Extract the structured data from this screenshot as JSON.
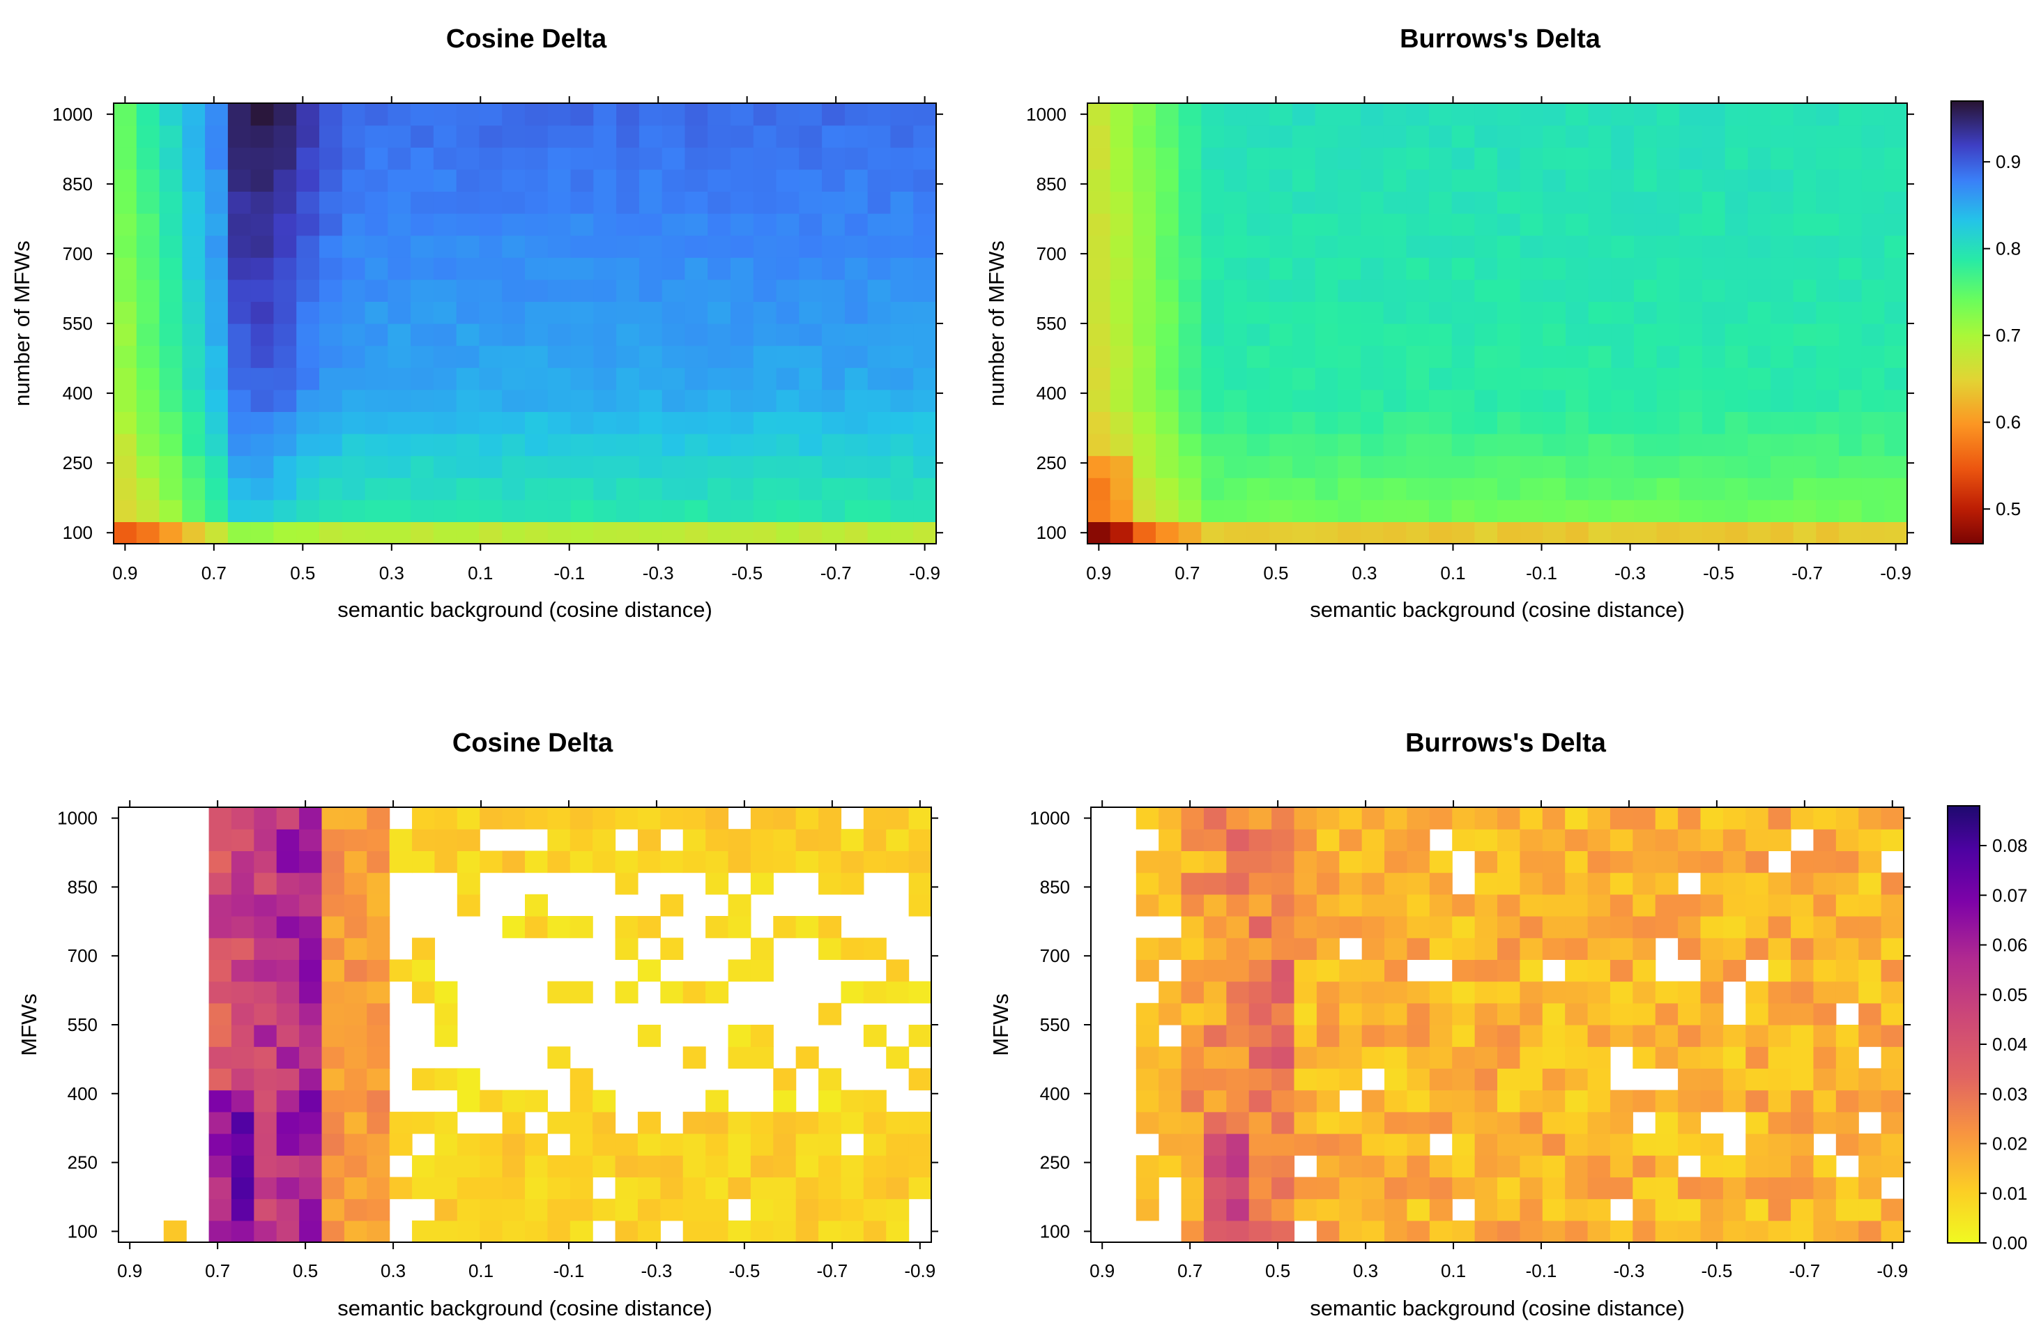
{
  "chart_data": [
    {
      "type": "heatmap",
      "title": "Cosine Delta",
      "xlabel": "semantic background (cosine distance)",
      "ylabel": "number of MFWs",
      "xlim": [
        0.9,
        -0.9
      ],
      "ylim": [
        100,
        1000
      ],
      "x_ticks": [
        "0.9",
        "0.7",
        "0.5",
        "0.3",
        "0.1",
        "-0.1",
        "-0.3",
        "-0.5",
        "-0.7",
        "-0.9"
      ],
      "y_ticks": [
        "100",
        "250",
        "400",
        "550",
        "700",
        "850",
        "1000"
      ],
      "colormap": "turbo",
      "color_range": [
        0.46,
        0.97
      ],
      "colorbar_ticks": [
        "0.5",
        "0.6",
        "0.7",
        "0.8",
        "0.9"
      ],
      "pattern": "cosine_accuracy",
      "summary": {
        "min_at": {
          "x": 0.9,
          "mfw": 100,
          "value": 0.55
        },
        "max_at": {
          "x": 0.6,
          "mfw": 1000,
          "value": 0.96
        },
        "plateau_value": 0.87
      }
    },
    {
      "type": "heatmap",
      "title": "Burrows's Delta",
      "xlabel": "semantic background (cosine distance)",
      "ylabel": "number of MFWs",
      "xlim": [
        0.9,
        -0.9
      ],
      "ylim": [
        100,
        1000
      ],
      "x_ticks": [
        "0.9",
        "0.7",
        "0.5",
        "0.3",
        "0.1",
        "-0.1",
        "-0.3",
        "-0.5",
        "-0.7",
        "-0.9"
      ],
      "y_ticks": [
        "100",
        "250",
        "400",
        "550",
        "700",
        "850",
        "1000"
      ],
      "colormap": "turbo",
      "color_range": [
        0.46,
        0.97
      ],
      "colorbar_ticks": [
        "0.5",
        "0.6",
        "0.7",
        "0.8",
        "0.9"
      ],
      "pattern": "burrows_accuracy",
      "summary": {
        "min_at": {
          "x": 0.9,
          "mfw": 100,
          "value": 0.47
        },
        "plateau_value": 0.8
      }
    },
    {
      "type": "heatmap",
      "title": "Cosine Delta",
      "xlabel": "semantic background (cosine distance)",
      "ylabel": "MFWs",
      "xlim": [
        0.9,
        -0.9
      ],
      "ylim": [
        100,
        1000
      ],
      "x_ticks": [
        "0.9",
        "0.7",
        "0.5",
        "0.3",
        "0.1",
        "-0.1",
        "-0.3",
        "-0.5",
        "-0.7",
        "-0.9"
      ],
      "y_ticks": [
        "100",
        "250",
        "400",
        "550",
        "700",
        "850",
        "1000"
      ],
      "colormap": "plasma_r",
      "color_range": [
        0.0,
        0.088
      ],
      "colorbar_ticks": [
        "0.00",
        "0.01",
        "0.02",
        "0.03",
        "0.04",
        "0.05",
        "0.06",
        "0.07",
        "0.08"
      ],
      "pattern": "cosine_variance",
      "summary": {
        "max_value": 0.085,
        "max_at": {
          "x": 0.7,
          "mfw": 200
        },
        "blank_cells": "white (no value)"
      }
    },
    {
      "type": "heatmap",
      "title": "Burrows's Delta",
      "xlabel": "semantic background (cosine distance)",
      "ylabel": "MFWs",
      "xlim": [
        0.9,
        -0.9
      ],
      "ylim": [
        100,
        1000
      ],
      "x_ticks": [
        "0.9",
        "0.7",
        "0.5",
        "0.3",
        "0.1",
        "-0.1",
        "-0.3",
        "-0.5",
        "-0.7",
        "-0.9"
      ],
      "y_ticks": [
        "100",
        "250",
        "400",
        "550",
        "700",
        "850",
        "1000"
      ],
      "colormap": "plasma_r",
      "color_range": [
        0.0,
        0.088
      ],
      "colorbar_ticks": [
        "0.00",
        "0.01",
        "0.02",
        "0.03",
        "0.04",
        "0.05",
        "0.06",
        "0.07",
        "0.08"
      ],
      "pattern": "burrows_variance",
      "summary": {
        "max_value": 0.06,
        "typical_value": 0.015,
        "blank_cells": "white (no value)"
      }
    }
  ]
}
